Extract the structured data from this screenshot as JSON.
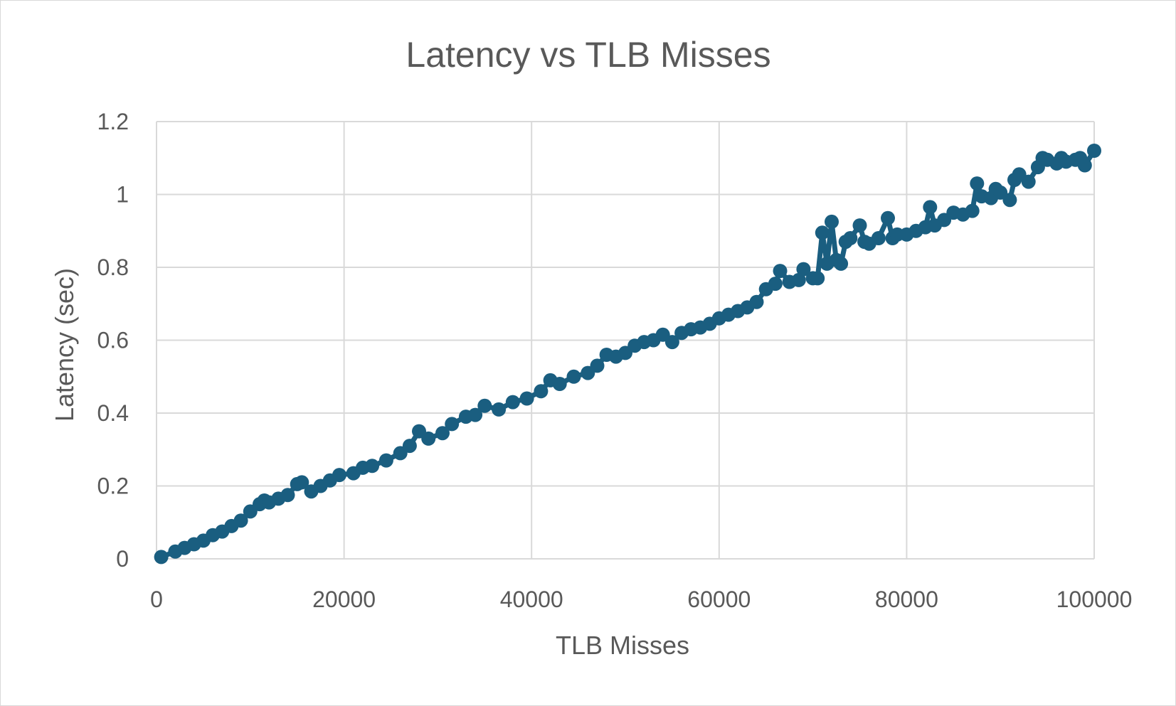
{
  "chart_data": {
    "type": "line",
    "title": "Latency vs TLB Misses",
    "xlabel": "TLB Misses",
    "ylabel": "Latency (sec)",
    "xlim": [
      0,
      100000
    ],
    "ylim": [
      0,
      1.2
    ],
    "x_ticks": [
      0,
      20000,
      40000,
      60000,
      80000,
      100000
    ],
    "x_tick_labels": [
      "0",
      "20000",
      "40000",
      "60000",
      "80000",
      "100000"
    ],
    "y_ticks": [
      0,
      0.2,
      0.4,
      0.6,
      0.8,
      1.0,
      1.2
    ],
    "y_tick_labels": [
      "0",
      "0.2",
      "0.4",
      "0.6",
      "0.8",
      "1",
      "1.2"
    ],
    "grid": true,
    "legend": "none",
    "markers": true,
    "color": "#1a5e80",
    "series": [
      {
        "x": [
          500,
          2000,
          3000,
          4000,
          5000,
          6000,
          7000,
          8000,
          9000,
          10000,
          11000,
          11500,
          12000,
          13000,
          14000,
          15000,
          15500,
          16500,
          17500,
          18500,
          19500,
          21000,
          22000,
          23000,
          24500,
          26000,
          27000,
          28000,
          29000,
          30500,
          31500,
          33000,
          34000,
          35000,
          36500,
          38000,
          39500,
          41000,
          42000,
          43000,
          44500,
          46000,
          47000,
          48000,
          49000,
          50000,
          51000,
          52000,
          53000,
          54000,
          55000,
          56000,
          57000,
          58000,
          59000,
          60000,
          61000,
          62000,
          63000,
          64000,
          65000,
          66000,
          66500,
          67500,
          68500,
          69000,
          70000,
          70500,
          71000,
          71500,
          72000,
          72500,
          73000,
          73500,
          74000,
          75000,
          75500,
          76000,
          77000,
          78000,
          78500,
          79000,
          80000,
          81000,
          82000,
          82500,
          83000,
          84000,
          85000,
          86000,
          87000,
          87500,
          88000,
          89000,
          89500,
          90000,
          91000,
          91500,
          92000,
          93000,
          94000,
          94500,
          95000,
          96000,
          96500,
          97000,
          98000,
          98500,
          99000,
          100000
        ],
        "y": [
          0.005,
          0.02,
          0.03,
          0.04,
          0.05,
          0.065,
          0.075,
          0.09,
          0.105,
          0.13,
          0.15,
          0.16,
          0.155,
          0.165,
          0.175,
          0.205,
          0.21,
          0.185,
          0.2,
          0.215,
          0.23,
          0.235,
          0.25,
          0.255,
          0.27,
          0.29,
          0.31,
          0.35,
          0.33,
          0.345,
          0.37,
          0.39,
          0.395,
          0.42,
          0.41,
          0.43,
          0.44,
          0.46,
          0.49,
          0.48,
          0.5,
          0.51,
          0.53,
          0.56,
          0.555,
          0.565,
          0.585,
          0.595,
          0.6,
          0.615,
          0.595,
          0.62,
          0.63,
          0.635,
          0.645,
          0.66,
          0.67,
          0.68,
          0.69,
          0.705,
          0.74,
          0.755,
          0.79,
          0.76,
          0.765,
          0.795,
          0.77,
          0.77,
          0.895,
          0.81,
          0.925,
          0.82,
          0.81,
          0.87,
          0.88,
          0.915,
          0.87,
          0.865,
          0.88,
          0.935,
          0.88,
          0.89,
          0.89,
          0.9,
          0.91,
          0.965,
          0.915,
          0.93,
          0.95,
          0.945,
          0.955,
          1.03,
          0.995,
          0.99,
          1.015,
          1.005,
          0.985,
          1.04,
          1.055,
          1.035,
          1.075,
          1.1,
          1.095,
          1.085,
          1.1,
          1.09,
          1.095,
          1.1,
          1.08,
          1.12
        ]
      }
    ]
  }
}
